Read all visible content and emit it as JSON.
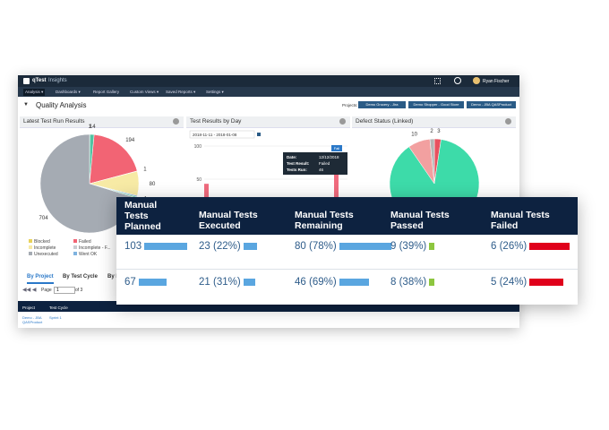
{
  "app": {
    "brand": "qTest",
    "product": "Insights",
    "user": "Ryan Fischer"
  },
  "menu": [
    "Analysis ▾",
    "Dashboards ▾",
    "Report Gallery",
    "Custom Views ▾",
    "Saved Reports ▾",
    "Settings ▾"
  ],
  "page": {
    "title": "Quality Analysis",
    "projects_label": "Projects:",
    "projects": [
      "Demo Grocery - Jira",
      "Demo Shopper - Good Store",
      "Demo - JBA QASProduct"
    ]
  },
  "panels": [
    {
      "title": "Latest Test Run Results",
      "pie": {
        "values": [
          1,
          14,
          194,
          1,
          80,
          4,
          4,
          704
        ],
        "colors": [
          "#e8d25a",
          "#4fc3a1",
          "#f26474",
          "#f7a8b8",
          "#f7eaa5",
          "#7fb3e0",
          "#5bd0a0",
          "#a5abb3"
        ]
      },
      "legend": [
        "Blocked",
        "Failed",
        "Failed - F...",
        "Incomplete",
        "Incomplete - F...",
        "Passed",
        "Unexecuted",
        "Went OK"
      ],
      "legend_colors": [
        "#e8d25a",
        "#f26474",
        "#f7a8b8",
        "#f7eaa5",
        "#c9ccd1",
        "#5bd0a0",
        "#a5abb3",
        "#7fb3e0"
      ]
    },
    {
      "title": "Test Results by Day",
      "date_range": "2018-11-11 - 2018-01-08",
      "ylim": [
        0,
        100
      ],
      "yticks": [
        100,
        50
      ],
      "bars": [
        43,
        64
      ],
      "bar_color": "#f06b7e",
      "tooltip": {
        "button": "Fail",
        "lines": [
          [
            "Date:",
            "12/12/2018"
          ],
          [
            "Test Result:",
            "Failed"
          ],
          [
            "Tests Run:",
            "46"
          ]
        ]
      }
    },
    {
      "title": "Defect Status (Linked)",
      "pie": {
        "values": [
          3,
          110,
          10,
          2
        ],
        "value_labels": [
          "3",
          null,
          "10",
          "2"
        ],
        "colors": [
          "#e8515f",
          "#3ddba9",
          "#f2a0a0",
          "#b5b5b5"
        ]
      }
    }
  ],
  "tabs": [
    "By Project",
    "By Test Cycle",
    "By R"
  ],
  "pager": {
    "label": "Page",
    "page": 1,
    "of": "of 3"
  },
  "mini_table": {
    "headers": [
      "Project",
      "Test Cycle"
    ],
    "row": [
      "Demo - JBA QASProduct",
      "Sprint 1"
    ]
  },
  "table": {
    "headers": [
      "Manual Tests Planned",
      "Manual Tests Executed",
      "Manual Tests Remaining",
      "Manual Tests Passed",
      "Manual Tests Failed"
    ],
    "bar_colors": [
      "#5aa6e0",
      "#5aa6e0",
      "#5aa6e0",
      "#8dc63f",
      "#e0001b"
    ],
    "rows": [
      [
        103,
        {
          "value": 23,
          "label": "23 (22%)"
        },
        {
          "value": 80,
          "label": "80 (78%)"
        },
        {
          "value": 9,
          "label": "9 (39%)"
        },
        {
          "value": 6,
          "label": "6 (26%)"
        }
      ],
      [
        67,
        {
          "value": 21,
          "label": "21 (31%)"
        },
        {
          "value": 46,
          "label": "46 (69%)"
        },
        {
          "value": 8,
          "label": "8 (38%)"
        },
        {
          "value": 5,
          "label": "5 (24%)"
        }
      ]
    ]
  }
}
